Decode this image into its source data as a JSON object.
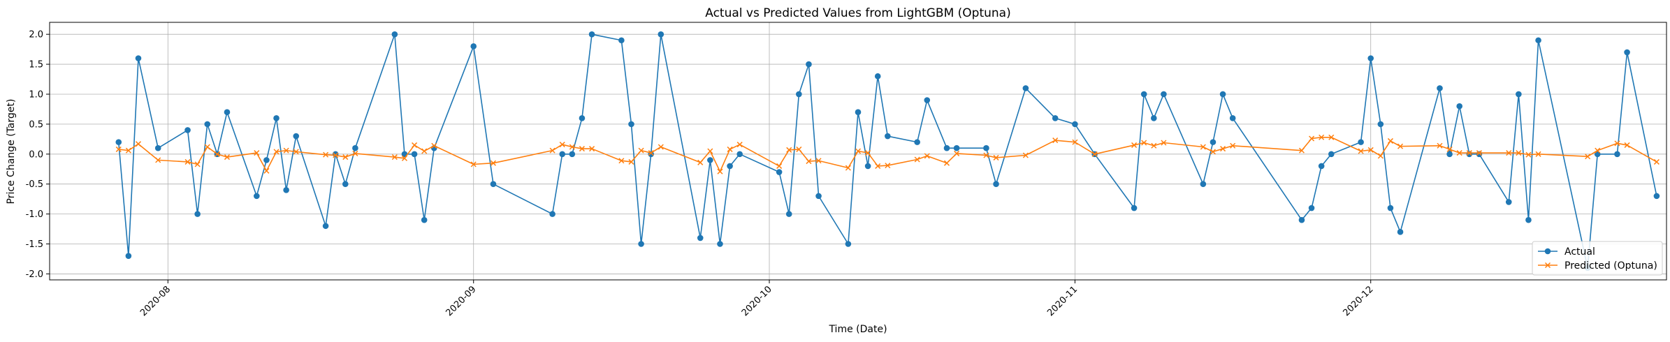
{
  "chart_data": {
    "type": "line",
    "title": "Actual vs Predicted Values from LightGBM (Optuna)",
    "xlabel": "Time (Date)",
    "ylabel": "Price Change (Target)",
    "x_range": [
      "2020-07-20",
      "2020-12-31"
    ],
    "ylim": [
      -2.1,
      2.2
    ],
    "y_ticks": [
      -2.0,
      -1.5,
      -1.0,
      -0.5,
      0.0,
      0.5,
      1.0,
      1.5,
      2.0
    ],
    "x_ticks": [
      "2020-08-01",
      "2020-09-01",
      "2020-10-01",
      "2020-11-01",
      "2020-12-01"
    ],
    "x_tick_labels": [
      "2020-08",
      "2020-09",
      "2020-10",
      "2020-11",
      "2020-12"
    ],
    "x_tick_rotation": 45,
    "grid": true,
    "legend_position": "lower right",
    "series": [
      {
        "name": "Actual",
        "color": "#1f77b4",
        "marker": "circle",
        "points": [
          [
            "2020-07-27",
            0.2
          ],
          [
            "2020-07-28",
            -1.7
          ],
          [
            "2020-07-29",
            1.6
          ],
          [
            "2020-07-31",
            0.1
          ],
          [
            "2020-08-03",
            0.4
          ],
          [
            "2020-08-04",
            -1.0
          ],
          [
            "2020-08-05",
            0.5
          ],
          [
            "2020-08-06",
            0.0
          ],
          [
            "2020-08-07",
            0.7
          ],
          [
            "2020-08-10",
            -0.7
          ],
          [
            "2020-08-11",
            -0.1
          ],
          [
            "2020-08-12",
            0.6
          ],
          [
            "2020-08-13",
            -0.6
          ],
          [
            "2020-08-14",
            0.3
          ],
          [
            "2020-08-17",
            -1.2
          ],
          [
            "2020-08-18",
            0.0
          ],
          [
            "2020-08-19",
            -0.5
          ],
          [
            "2020-08-20",
            0.1
          ],
          [
            "2020-08-24",
            2.0
          ],
          [
            "2020-08-25",
            0.0
          ],
          [
            "2020-08-26",
            0.0
          ],
          [
            "2020-08-27",
            -1.1
          ],
          [
            "2020-08-28",
            0.1
          ],
          [
            "2020-09-01",
            1.8
          ],
          [
            "2020-09-03",
            -0.5
          ],
          [
            "2020-09-09",
            -1.0
          ],
          [
            "2020-09-10",
            0.0
          ],
          [
            "2020-09-11",
            0.0
          ],
          [
            "2020-09-12",
            0.6
          ],
          [
            "2020-09-13",
            2.0
          ],
          [
            "2020-09-16",
            1.9
          ],
          [
            "2020-09-17",
            0.5
          ],
          [
            "2020-09-18",
            -1.5
          ],
          [
            "2020-09-19",
            0.0
          ],
          [
            "2020-09-20",
            2.0
          ],
          [
            "2020-09-24",
            -1.4
          ],
          [
            "2020-09-25",
            -0.1
          ],
          [
            "2020-09-26",
            -1.5
          ],
          [
            "2020-09-27",
            -0.2
          ],
          [
            "2020-09-28",
            0.0
          ],
          [
            "2020-10-02",
            -0.3
          ],
          [
            "2020-10-03",
            -1.0
          ],
          [
            "2020-10-04",
            1.0
          ],
          [
            "2020-10-05",
            1.5
          ],
          [
            "2020-10-06",
            -0.7
          ],
          [
            "2020-10-09",
            -1.5
          ],
          [
            "2020-10-10",
            0.7
          ],
          [
            "2020-10-11",
            -0.2
          ],
          [
            "2020-10-12",
            1.3
          ],
          [
            "2020-10-13",
            0.3
          ],
          [
            "2020-10-16",
            0.2
          ],
          [
            "2020-10-17",
            0.9
          ],
          [
            "2020-10-19",
            0.1
          ],
          [
            "2020-10-20",
            0.1
          ],
          [
            "2020-10-23",
            0.1
          ],
          [
            "2020-10-24",
            -0.5
          ],
          [
            "2020-10-27",
            1.1
          ],
          [
            "2020-10-30",
            0.6
          ],
          [
            "2020-11-01",
            0.5
          ],
          [
            "2020-11-03",
            0.0
          ],
          [
            "2020-11-07",
            -0.9
          ],
          [
            "2020-11-08",
            1.0
          ],
          [
            "2020-11-09",
            0.6
          ],
          [
            "2020-11-10",
            1.0
          ],
          [
            "2020-11-14",
            -0.5
          ],
          [
            "2020-11-15",
            0.2
          ],
          [
            "2020-11-16",
            1.0
          ],
          [
            "2020-11-17",
            0.6
          ],
          [
            "2020-11-24",
            -1.1
          ],
          [
            "2020-11-25",
            -0.9
          ],
          [
            "2020-11-26",
            -0.2
          ],
          [
            "2020-11-27",
            0.0
          ],
          [
            "2020-11-30",
            0.2
          ],
          [
            "2020-12-01",
            1.6
          ],
          [
            "2020-12-02",
            0.5
          ],
          [
            "2020-12-03",
            -0.9
          ],
          [
            "2020-12-04",
            -1.3
          ],
          [
            "2020-12-08",
            1.1
          ],
          [
            "2020-12-09",
            0.0
          ],
          [
            "2020-12-10",
            0.8
          ],
          [
            "2020-12-11",
            0.0
          ],
          [
            "2020-12-12",
            0.0
          ],
          [
            "2020-12-15",
            -0.8
          ],
          [
            "2020-12-16",
            1.0
          ],
          [
            "2020-12-17",
            -1.1
          ],
          [
            "2020-12-18",
            1.9
          ],
          [
            "2020-12-23",
            -1.9
          ],
          [
            "2020-12-24",
            0.0
          ],
          [
            "2020-12-26",
            0.0
          ],
          [
            "2020-12-27",
            1.7
          ],
          [
            "2020-12-30",
            -0.7
          ]
        ]
      },
      {
        "name": "Predicted (Optuna)",
        "color": "#ff7f0e",
        "marker": "x",
        "points": [
          [
            "2020-07-27",
            0.08
          ],
          [
            "2020-07-28",
            0.06
          ],
          [
            "2020-07-29",
            0.17
          ],
          [
            "2020-07-31",
            -0.1
          ],
          [
            "2020-08-03",
            -0.13
          ],
          [
            "2020-08-04",
            -0.17
          ],
          [
            "2020-08-05",
            0.12
          ],
          [
            "2020-08-06",
            0.0
          ],
          [
            "2020-08-07",
            -0.05
          ],
          [
            "2020-08-10",
            0.02
          ],
          [
            "2020-08-11",
            -0.28
          ],
          [
            "2020-08-12",
            0.04
          ],
          [
            "2020-08-13",
            0.06
          ],
          [
            "2020-08-14",
            0.04
          ],
          [
            "2020-08-17",
            -0.01
          ],
          [
            "2020-08-18",
            -0.02
          ],
          [
            "2020-08-19",
            -0.05
          ],
          [
            "2020-08-20",
            0.01
          ],
          [
            "2020-08-24",
            -0.05
          ],
          [
            "2020-08-25",
            -0.07
          ],
          [
            "2020-08-26",
            0.15
          ],
          [
            "2020-08-27",
            0.05
          ],
          [
            "2020-08-28",
            0.14
          ],
          [
            "2020-09-01",
            -0.17
          ],
          [
            "2020-09-03",
            -0.15
          ],
          [
            "2020-09-09",
            0.06
          ],
          [
            "2020-09-10",
            0.16
          ],
          [
            "2020-09-11",
            0.12
          ],
          [
            "2020-09-12",
            0.09
          ],
          [
            "2020-09-13",
            0.09
          ],
          [
            "2020-09-16",
            -0.11
          ],
          [
            "2020-09-17",
            -0.13
          ],
          [
            "2020-09-18",
            0.06
          ],
          [
            "2020-09-19",
            0.02
          ],
          [
            "2020-09-20",
            0.12
          ],
          [
            "2020-09-24",
            -0.14
          ],
          [
            "2020-09-25",
            0.05
          ],
          [
            "2020-09-26",
            -0.29
          ],
          [
            "2020-09-27",
            0.08
          ],
          [
            "2020-09-28",
            0.16
          ],
          [
            "2020-10-02",
            -0.2
          ],
          [
            "2020-10-03",
            0.07
          ],
          [
            "2020-10-04",
            0.08
          ],
          [
            "2020-10-05",
            -0.12
          ],
          [
            "2020-10-06",
            -0.11
          ],
          [
            "2020-10-09",
            -0.23
          ],
          [
            "2020-10-10",
            0.05
          ],
          [
            "2020-10-11",
            0.02
          ],
          [
            "2020-10-12",
            -0.2
          ],
          [
            "2020-10-13",
            -0.19
          ],
          [
            "2020-10-16",
            -0.09
          ],
          [
            "2020-10-17",
            -0.03
          ],
          [
            "2020-10-19",
            -0.15
          ],
          [
            "2020-10-20",
            0.01
          ],
          [
            "2020-10-23",
            -0.02
          ],
          [
            "2020-10-24",
            -0.06
          ],
          [
            "2020-10-27",
            -0.02
          ],
          [
            "2020-10-30",
            0.23
          ],
          [
            "2020-11-01",
            0.2
          ],
          [
            "2020-11-03",
            0.0
          ],
          [
            "2020-11-07",
            0.15
          ],
          [
            "2020-11-08",
            0.19
          ],
          [
            "2020-11-09",
            0.14
          ],
          [
            "2020-11-10",
            0.19
          ],
          [
            "2020-11-14",
            0.12
          ],
          [
            "2020-11-15",
            0.04
          ],
          [
            "2020-11-16",
            0.09
          ],
          [
            "2020-11-17",
            0.14
          ],
          [
            "2020-11-24",
            0.06
          ],
          [
            "2020-11-25",
            0.26
          ],
          [
            "2020-11-26",
            0.28
          ],
          [
            "2020-11-27",
            0.28
          ],
          [
            "2020-11-30",
            0.05
          ],
          [
            "2020-12-01",
            0.07
          ],
          [
            "2020-12-02",
            -0.03
          ],
          [
            "2020-12-03",
            0.22
          ],
          [
            "2020-12-04",
            0.13
          ],
          [
            "2020-12-08",
            0.14
          ],
          [
            "2020-12-09",
            0.08
          ],
          [
            "2020-12-10",
            0.02
          ],
          [
            "2020-12-11",
            0.02
          ],
          [
            "2020-12-12",
            0.02
          ],
          [
            "2020-12-15",
            0.02
          ],
          [
            "2020-12-16",
            0.02
          ],
          [
            "2020-12-17",
            -0.01
          ],
          [
            "2020-12-18",
            0.0
          ],
          [
            "2020-12-23",
            -0.04
          ],
          [
            "2020-12-24",
            0.06
          ],
          [
            "2020-12-26",
            0.18
          ],
          [
            "2020-12-27",
            0.15
          ],
          [
            "2020-12-30",
            -0.13
          ]
        ]
      }
    ]
  }
}
